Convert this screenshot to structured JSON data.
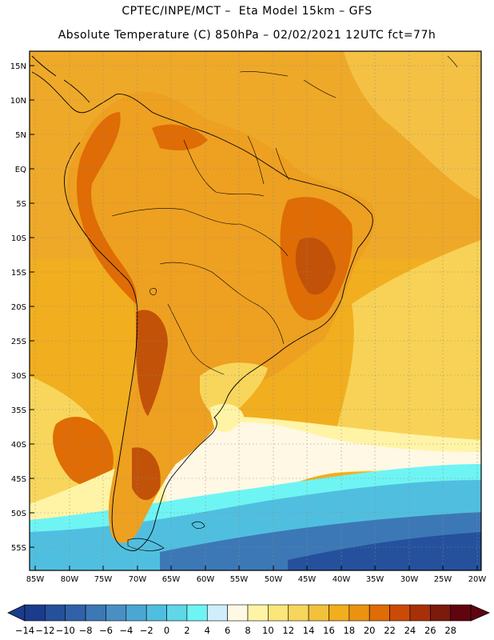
{
  "header": {
    "line1": "CPTEC/INPE/MCT –  Eta Model 15km – GFS",
    "line2": "Absolute Temperature (C) 850hPa – 02/02/2021 12UTC fct=77h"
  },
  "lat_labels": [
    "15N",
    "10N",
    "5N",
    "EQ",
    "5S",
    "10S",
    "15S",
    "20S",
    "25S",
    "30S",
    "35S",
    "40S",
    "45S",
    "50S",
    "55S"
  ],
  "lon_labels": [
    "85W",
    "80W",
    "75W",
    "70W",
    "65W",
    "60W",
    "55W",
    "50W",
    "45W",
    "40W",
    "35W",
    "30W",
    "25W",
    "20W"
  ],
  "colorbar": {
    "labels": [
      "-14",
      "-12",
      "-10",
      "-8",
      "-6",
      "-4",
      "-2",
      "0",
      "2",
      "4",
      "6",
      "8",
      "10",
      "12",
      "14",
      "16",
      "18",
      "20",
      "22",
      "24",
      "26",
      "28"
    ],
    "colors": [
      "#1b3c8c",
      "#25519c",
      "#2f62a8",
      "#3c78b6",
      "#4a8fc4",
      "#4aa7d4",
      "#50bfdf",
      "#5fd7e8",
      "#6ff4f4",
      "#cfeefc",
      "#fff8e4",
      "#fff4a6",
      "#fbe67a",
      "#f8d65c",
      "#f3c23c",
      "#f1ae1e",
      "#eb9210",
      "#df6c05",
      "#cb4a06",
      "#a83008",
      "#7c1a0c",
      "#600410"
    ]
  },
  "map_colors": {
    "ocean_north": "#efa72a",
    "ocean_warm": "#f1ae1e",
    "land_base": "#eea020",
    "hot": "#df6c05",
    "very_hot": "#c25208",
    "mild": "#f8d65c",
    "cool": "#fff4a6",
    "pale": "#fff8e4",
    "cold1": "#6ff4f4",
    "cold2": "#50bfdf",
    "cold3": "#3c78b6",
    "cold4": "#25519c"
  }
}
